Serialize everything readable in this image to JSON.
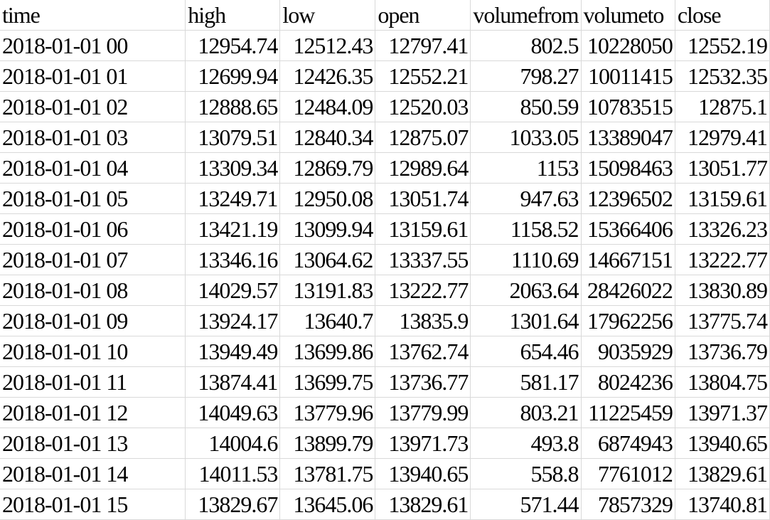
{
  "sheet": {
    "columns": [
      "time",
      "high",
      "low",
      "open",
      "volumefrom",
      "volumeto",
      "close"
    ],
    "rows": [
      [
        "2018-01-01 00",
        "12954.74",
        "12512.43",
        "12797.41",
        "802.5",
        "10228050",
        "12552.19"
      ],
      [
        "2018-01-01 01",
        "12699.94",
        "12426.35",
        "12552.21",
        "798.27",
        "10011415",
        "12532.35"
      ],
      [
        "2018-01-01 02",
        "12888.65",
        "12484.09",
        "12520.03",
        "850.59",
        "10783515",
        "12875.1"
      ],
      [
        "2018-01-01 03",
        "13079.51",
        "12840.34",
        "12875.07",
        "1033.05",
        "13389047",
        "12979.41"
      ],
      [
        "2018-01-01 04",
        "13309.34",
        "12869.79",
        "12989.64",
        "1153",
        "15098463",
        "13051.77"
      ],
      [
        "2018-01-01 05",
        "13249.71",
        "12950.08",
        "13051.74",
        "947.63",
        "12396502",
        "13159.61"
      ],
      [
        "2018-01-01 06",
        "13421.19",
        "13099.94",
        "13159.61",
        "1158.52",
        "15366406",
        "13326.23"
      ],
      [
        "2018-01-01 07",
        "13346.16",
        "13064.62",
        "13337.55",
        "1110.69",
        "14667151",
        "13222.77"
      ],
      [
        "2018-01-01 08",
        "14029.57",
        "13191.83",
        "13222.77",
        "2063.64",
        "28426022",
        "13830.89"
      ],
      [
        "2018-01-01 09",
        "13924.17",
        "13640.7",
        "13835.9",
        "1301.64",
        "17962256",
        "13775.74"
      ],
      [
        "2018-01-01 10",
        "13949.49",
        "13699.86",
        "13762.74",
        "654.46",
        "9035929",
        "13736.79"
      ],
      [
        "2018-01-01 11",
        "13874.41",
        "13699.75",
        "13736.77",
        "581.17",
        "8024236",
        "13804.75"
      ],
      [
        "2018-01-01 12",
        "14049.63",
        "13779.96",
        "13779.99",
        "803.21",
        "11225459",
        "13971.37"
      ],
      [
        "2018-01-01 13",
        "14004.6",
        "13899.79",
        "13971.73",
        "493.8",
        "6874943",
        "13940.65"
      ],
      [
        "2018-01-01 14",
        "14011.53",
        "13781.75",
        "13940.65",
        "558.8",
        "7761012",
        "13829.61"
      ],
      [
        "2018-01-01 15",
        "13829.67",
        "13645.06",
        "13829.61",
        "571.44",
        "7857329",
        "13740.81"
      ]
    ]
  }
}
